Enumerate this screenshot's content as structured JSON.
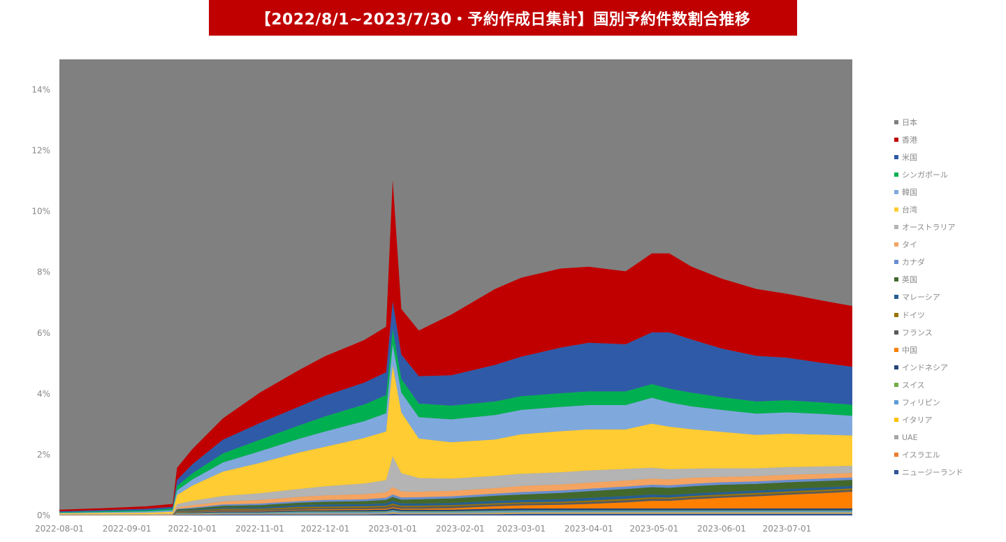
{
  "title": "【2022/8/1~2023/7/30・予約作成日集計】国別予約件数割合推移",
  "chart_data": {
    "type": "area",
    "stacked": true,
    "title": "【2022/8/1~2023/7/30・予約作成日集計】国別予約件数割合推移",
    "xlabel": "",
    "ylabel": "",
    "ylim": [
      0,
      15
    ],
    "y_ticks": [
      0,
      2,
      4,
      6,
      8,
      10,
      12,
      14
    ],
    "y_tick_labels": [
      "0%",
      "2%",
      "4%",
      "6%",
      "8%",
      "10%",
      "12%",
      "14%"
    ],
    "x_tick_labels": [
      "2022-08-01",
      "2022-09-01",
      "2022-10-01",
      "2022-11-01",
      "2022-12-01",
      "2023-01-01",
      "2023-02-01",
      "2023-03-01",
      "2023-04-01",
      "2023-05-01",
      "2023-06-01",
      "2023-07-01"
    ],
    "x_tick_days": [
      0,
      31,
      61,
      92,
      122,
      153,
      184,
      212,
      243,
      273,
      304,
      334
    ],
    "x_range_days": [
      0,
      364
    ],
    "x": [
      0,
      20,
      40,
      52,
      54,
      61,
      75,
      92,
      110,
      122,
      140,
      150,
      153,
      157,
      165,
      180,
      200,
      212,
      230,
      243,
      260,
      272,
      280,
      290,
      304,
      320,
      334,
      350,
      364
    ],
    "legend_position": "right",
    "background_series": {
      "name": "日本",
      "color": "#808080"
    },
    "series": [
      {
        "name": "ニュージーランド",
        "color": "#2f5597",
        "values": [
          0,
          0,
          0,
          0,
          0.02,
          0.02,
          0.03,
          0.03,
          0.03,
          0.03,
          0.03,
          0.04,
          0.05,
          0.04,
          0.04,
          0.04,
          0.04,
          0.05,
          0.05,
          0.05,
          0.05,
          0.05,
          0.05,
          0.05,
          0.05,
          0.05,
          0.05,
          0.05,
          0.05
        ]
      },
      {
        "name": "イスラエル",
        "color": "#ed7d31",
        "values": [
          0,
          0,
          0,
          0,
          0.01,
          0.01,
          0.01,
          0.01,
          0.01,
          0.01,
          0.01,
          0.01,
          0.01,
          0.01,
          0.01,
          0.01,
          0.01,
          0.01,
          0.01,
          0.01,
          0.01,
          0.01,
          0.01,
          0.01,
          0.01,
          0.01,
          0.01,
          0.01,
          0.01
        ]
      },
      {
        "name": "UAE",
        "color": "#a5a5a5",
        "values": [
          0,
          0,
          0,
          0,
          0.01,
          0.01,
          0.01,
          0.01,
          0.02,
          0.02,
          0.02,
          0.02,
          0.03,
          0.02,
          0.02,
          0.02,
          0.02,
          0.02,
          0.02,
          0.02,
          0.02,
          0.02,
          0.02,
          0.02,
          0.02,
          0.02,
          0.02,
          0.02,
          0.02
        ]
      },
      {
        "name": "イタリア",
        "color": "#ffc000",
        "values": [
          0,
          0,
          0,
          0,
          0.01,
          0.01,
          0.01,
          0.01,
          0.01,
          0.01,
          0.01,
          0.01,
          0.02,
          0.01,
          0.01,
          0.01,
          0.02,
          0.02,
          0.02,
          0.02,
          0.02,
          0.02,
          0.02,
          0.02,
          0.02,
          0.02,
          0.02,
          0.02,
          0.02
        ]
      },
      {
        "name": "フィリピン",
        "color": "#5b9bd5",
        "values": [
          0,
          0,
          0,
          0,
          0.02,
          0.02,
          0.03,
          0.03,
          0.04,
          0.04,
          0.04,
          0.04,
          0.05,
          0.04,
          0.04,
          0.04,
          0.05,
          0.05,
          0.05,
          0.05,
          0.05,
          0.05,
          0.05,
          0.05,
          0.05,
          0.05,
          0.05,
          0.05,
          0.05
        ]
      },
      {
        "name": "スイス",
        "color": "#70ad47",
        "values": [
          0,
          0,
          0,
          0,
          0.01,
          0.01,
          0.01,
          0.01,
          0.02,
          0.02,
          0.02,
          0.02,
          0.02,
          0.02,
          0.02,
          0.02,
          0.02,
          0.02,
          0.02,
          0.02,
          0.02,
          0.02,
          0.02,
          0.02,
          0.02,
          0.02,
          0.02,
          0.02,
          0.02
        ]
      },
      {
        "name": "インドネシア",
        "color": "#264478",
        "values": [
          0,
          0,
          0,
          0,
          0.01,
          0.02,
          0.03,
          0.03,
          0.04,
          0.04,
          0.05,
          0.05,
          0.06,
          0.05,
          0.05,
          0.05,
          0.06,
          0.06,
          0.06,
          0.06,
          0.06,
          0.06,
          0.06,
          0.06,
          0.06,
          0.06,
          0.06,
          0.06,
          0.06
        ]
      },
      {
        "name": "中国",
        "color": "#ff8000",
        "values": [
          0,
          0,
          0,
          0,
          0.01,
          0.01,
          0.02,
          0.02,
          0.02,
          0.03,
          0.03,
          0.03,
          0.03,
          0.03,
          0.03,
          0.05,
          0.08,
          0.1,
          0.12,
          0.15,
          0.2,
          0.25,
          0.25,
          0.3,
          0.35,
          0.4,
          0.45,
          0.5,
          0.55
        ]
      },
      {
        "name": "フランス",
        "color": "#595959",
        "values": [
          0.01,
          0.01,
          0.01,
          0.01,
          0.03,
          0.03,
          0.04,
          0.04,
          0.05,
          0.05,
          0.05,
          0.06,
          0.07,
          0.06,
          0.06,
          0.06,
          0.06,
          0.06,
          0.06,
          0.06,
          0.07,
          0.07,
          0.06,
          0.06,
          0.06,
          0.06,
          0.06,
          0.06,
          0.06
        ]
      },
      {
        "name": "ドイツ",
        "color": "#997300",
        "values": [
          0,
          0,
          0,
          0,
          0.02,
          0.02,
          0.03,
          0.03,
          0.04,
          0.04,
          0.04,
          0.04,
          0.05,
          0.04,
          0.04,
          0.04,
          0.04,
          0.04,
          0.04,
          0.05,
          0.05,
          0.05,
          0.05,
          0.05,
          0.05,
          0.05,
          0.05,
          0.05,
          0.05
        ]
      },
      {
        "name": "マレーシア",
        "color": "#255e91",
        "values": [
          0,
          0,
          0,
          0,
          0.02,
          0.03,
          0.04,
          0.05,
          0.06,
          0.07,
          0.07,
          0.08,
          0.1,
          0.08,
          0.07,
          0.07,
          0.08,
          0.08,
          0.09,
          0.09,
          0.09,
          0.09,
          0.08,
          0.08,
          0.08,
          0.08,
          0.08,
          0.08,
          0.08
        ]
      },
      {
        "name": "英国",
        "color": "#43682b",
        "values": [
          0,
          0,
          0,
          0,
          0.03,
          0.04,
          0.06,
          0.07,
          0.08,
          0.09,
          0.1,
          0.11,
          0.12,
          0.12,
          0.14,
          0.15,
          0.17,
          0.18,
          0.2,
          0.22,
          0.23,
          0.24,
          0.24,
          0.24,
          0.24,
          0.22,
          0.22,
          0.21,
          0.2
        ]
      },
      {
        "name": "カナダ",
        "color": "#698ed0",
        "values": [
          0,
          0,
          0,
          0,
          0.02,
          0.03,
          0.04,
          0.05,
          0.05,
          0.06,
          0.06,
          0.07,
          0.08,
          0.07,
          0.07,
          0.07,
          0.07,
          0.08,
          0.08,
          0.08,
          0.08,
          0.08,
          0.08,
          0.08,
          0.08,
          0.08,
          0.08,
          0.08,
          0.08
        ]
      },
      {
        "name": "タイ",
        "color": "#f4a460",
        "values": [
          0.01,
          0.01,
          0.01,
          0.02,
          0.05,
          0.08,
          0.1,
          0.12,
          0.14,
          0.15,
          0.17,
          0.18,
          0.25,
          0.2,
          0.18,
          0.18,
          0.18,
          0.2,
          0.2,
          0.2,
          0.2,
          0.2,
          0.2,
          0.2,
          0.18,
          0.17,
          0.17,
          0.16,
          0.15
        ]
      },
      {
        "name": "オーストラリア",
        "color": "#b4b4b4",
        "values": [
          0.02,
          0.02,
          0.02,
          0.03,
          0.1,
          0.14,
          0.18,
          0.22,
          0.26,
          0.3,
          0.35,
          0.4,
          1,
          0.6,
          0.45,
          0.4,
          0.4,
          0.4,
          0.4,
          0.4,
          0.38,
          0.36,
          0.33,
          0.3,
          0.28,
          0.26,
          0.25,
          0.24,
          0.23
        ]
      },
      {
        "name": "台湾",
        "color": "#ffcc33",
        "values": [
          0.03,
          0.04,
          0.05,
          0.06,
          0.3,
          0.5,
          0.8,
          1,
          1.2,
          1.3,
          1.5,
          1.6,
          3,
          2,
          1.3,
          1.2,
          1.2,
          1.3,
          1.35,
          1.35,
          1.3,
          1.45,
          1.4,
          1.3,
          1.2,
          1.1,
          1.1,
          1.05,
          1
        ]
      },
      {
        "name": "韓国",
        "color": "#7fa9dd",
        "values": [
          0.02,
          0.03,
          0.04,
          0.05,
          0.15,
          0.2,
          0.3,
          0.38,
          0.45,
          0.5,
          0.55,
          0.6,
          0.7,
          0.65,
          0.7,
          0.75,
          0.8,
          0.8,
          0.8,
          0.8,
          0.8,
          0.85,
          0.8,
          0.75,
          0.72,
          0.7,
          0.7,
          0.68,
          0.65
        ]
      },
      {
        "name": "シンガポール",
        "color": "#00b050",
        "values": [
          0.02,
          0.03,
          0.04,
          0.05,
          0.15,
          0.2,
          0.3,
          0.38,
          0.44,
          0.5,
          0.55,
          0.6,
          0.5,
          0.45,
          0.45,
          0.45,
          0.45,
          0.45,
          0.45,
          0.45,
          0.45,
          0.45,
          0.45,
          0.45,
          0.42,
          0.4,
          0.4,
          0.38,
          0.36
        ]
      },
      {
        "name": "米国",
        "color": "#2f5aa8",
        "values": [
          0.03,
          0.04,
          0.05,
          0.06,
          0.2,
          0.3,
          0.45,
          0.55,
          0.62,
          0.68,
          0.72,
          0.75,
          0.9,
          0.8,
          0.9,
          1,
          1.2,
          1.3,
          1.5,
          1.6,
          1.55,
          1.7,
          1.85,
          1.75,
          1.6,
          1.5,
          1.4,
          1.3,
          1.25
        ]
      },
      {
        "name": "香港",
        "color": "#c00000",
        "values": [
          0.05,
          0.06,
          0.08,
          0.1,
          0.4,
          0.5,
          0.7,
          1,
          1.2,
          1.3,
          1.4,
          1.5,
          4,
          1.5,
          1.5,
          2,
          2.5,
          2.6,
          2.6,
          2.5,
          2.4,
          2.6,
          2.6,
          2.4,
          2.3,
          2.2,
          2.1,
          2.05,
          2
        ]
      }
    ],
    "legend_order": [
      "日本",
      "香港",
      "米国",
      "シンガポール",
      "韓国",
      "台湾",
      "オーストラリア",
      "タイ",
      "カナダ",
      "英国",
      "マレーシア",
      "ドイツ",
      "フランス",
      "中国",
      "インドネシア",
      "スイス",
      "フィリピン",
      "イタリア",
      "UAE",
      "イスラエル",
      "ニュージーランド"
    ]
  }
}
